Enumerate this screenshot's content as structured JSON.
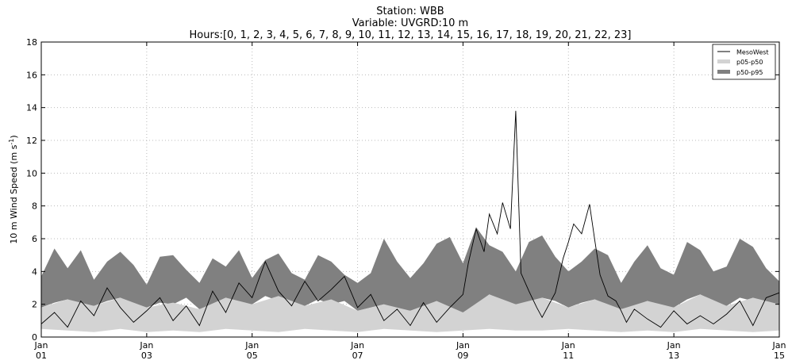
{
  "chart_data": {
    "type": "area",
    "title_lines": [
      "Station: WBB",
      "Variable: UVGRD:10 m",
      "Hours:[0, 1, 2, 3, 4, 5, 6, 7, 8, 9, 10, 11, 12, 13, 14, 15, 16, 17, 18, 19, 20, 21, 22, 23]"
    ],
    "ylabel": "10 m Wind Speed (m s",
    "ylabel_sup": "-1",
    "ylabel_close": ")",
    "xlim_days": [
      1,
      15
    ],
    "ylim": [
      0,
      18
    ],
    "yticks": [
      0,
      2,
      4,
      6,
      8,
      10,
      12,
      14,
      16,
      18
    ],
    "xticks": [
      {
        "day": 1,
        "month": "Jan",
        "label": "01"
      },
      {
        "day": 3,
        "month": "Jan",
        "label": "03"
      },
      {
        "day": 5,
        "month": "Jan",
        "label": "05"
      },
      {
        "day": 7,
        "month": "Jan",
        "label": "07"
      },
      {
        "day": 9,
        "month": "Jan",
        "label": "09"
      },
      {
        "day": 11,
        "month": "Jan",
        "label": "11"
      },
      {
        "day": 13,
        "month": "Jan",
        "label": "13"
      },
      {
        "day": 15,
        "month": "Jan",
        "label": "15"
      }
    ],
    "grid": true,
    "legend_position": "top-right",
    "series": [
      {
        "name": "MesoWest",
        "kind": "line",
        "color": "#000000",
        "day": [
          1.0,
          1.25,
          1.5,
          1.75,
          2.0,
          2.25,
          2.5,
          2.75,
          3.0,
          3.25,
          3.5,
          3.75,
          4.0,
          4.25,
          4.5,
          4.75,
          5.0,
          5.25,
          5.5,
          5.75,
          6.0,
          6.25,
          6.5,
          6.75,
          7.0,
          7.25,
          7.5,
          7.75,
          8.0,
          8.25,
          8.5,
          8.75,
          9.0,
          9.1,
          9.25,
          9.4,
          9.5,
          9.65,
          9.75,
          9.9,
          10.0,
          10.1,
          10.25,
          10.4,
          10.5,
          10.75,
          10.9,
          11.0,
          11.1,
          11.25,
          11.4,
          11.5,
          11.6,
          11.75,
          11.9,
          12.0,
          12.1,
          12.25,
          12.5,
          12.75,
          13.0,
          13.25,
          13.5,
          13.75,
          14.0,
          14.25,
          14.5,
          14.75,
          15.0
        ],
        "values": [
          0.8,
          1.5,
          0.6,
          2.2,
          1.3,
          3.0,
          1.8,
          0.9,
          1.6,
          2.4,
          1.0,
          1.9,
          0.7,
          2.8,
          1.5,
          3.3,
          2.4,
          4.6,
          2.8,
          1.9,
          3.4,
          2.2,
          2.9,
          3.7,
          1.8,
          2.6,
          1.0,
          1.7,
          0.7,
          2.1,
          0.9,
          1.8,
          2.6,
          4.5,
          6.6,
          5.2,
          7.5,
          6.3,
          8.2,
          6.6,
          13.8,
          3.9,
          2.8,
          1.8,
          1.2,
          2.7,
          4.8,
          5.8,
          6.9,
          6.3,
          8.1,
          5.9,
          3.8,
          2.5,
          2.2,
          1.6,
          0.9,
          1.7,
          1.1,
          0.6,
          1.6,
          0.8,
          1.3,
          0.8,
          1.4,
          2.2,
          0.7,
          2.4,
          2.7
        ]
      },
      {
        "name": "p05-p50",
        "kind": "band",
        "color": "#d3d3d3",
        "day": [
          1.0,
          1.5,
          2.0,
          2.5,
          3.0,
          3.5,
          4.0,
          4.5,
          5.0,
          5.5,
          6.0,
          6.5,
          7.0,
          7.5,
          8.0,
          8.5,
          9.0,
          9.5,
          10.0,
          10.5,
          11.0,
          11.5,
          12.0,
          12.5,
          13.0,
          13.5,
          14.0,
          14.5,
          15.0
        ],
        "lower": [
          0.5,
          0.4,
          0.3,
          0.5,
          0.3,
          0.4,
          0.3,
          0.5,
          0.4,
          0.3,
          0.5,
          0.4,
          0.3,
          0.5,
          0.4,
          0.3,
          0.4,
          0.5,
          0.4,
          0.4,
          0.5,
          0.4,
          0.3,
          0.4,
          0.3,
          0.5,
          0.4,
          0.3,
          0.4
        ],
        "upper": [
          1.8,
          2.3,
          1.9,
          2.4,
          1.8,
          2.1,
          1.7,
          2.4,
          2.0,
          2.5,
          1.9,
          2.3,
          1.6,
          2.0,
          1.6,
          2.2,
          1.5,
          2.6,
          2.0,
          2.4,
          1.8,
          2.3,
          1.7,
          2.2,
          1.8,
          2.6,
          1.9,
          2.4,
          2.0
        ]
      },
      {
        "name": "p50-p95",
        "kind": "band",
        "color": "#808080",
        "day": [
          1.0,
          1.25,
          1.5,
          1.75,
          2.0,
          2.25,
          2.5,
          2.75,
          3.0,
          3.25,
          3.5,
          3.75,
          4.0,
          4.25,
          4.5,
          4.75,
          5.0,
          5.25,
          5.5,
          5.75,
          6.0,
          6.25,
          6.5,
          6.75,
          7.0,
          7.25,
          7.5,
          7.75,
          8.0,
          8.25,
          8.5,
          8.75,
          9.0,
          9.25,
          9.5,
          9.75,
          10.0,
          10.25,
          10.5,
          10.75,
          11.0,
          11.25,
          11.5,
          11.75,
          12.0,
          12.25,
          12.5,
          12.75,
          13.0,
          13.25,
          13.5,
          13.75,
          14.0,
          14.25,
          14.5,
          14.75,
          15.0
        ],
        "lower": [
          1.8,
          2.1,
          2.3,
          2.0,
          1.9,
          2.2,
          2.4,
          2.0,
          1.8,
          2.1,
          2.0,
          2.4,
          1.7,
          2.0,
          2.4,
          2.1,
          2.0,
          2.5,
          2.2,
          1.9,
          1.9,
          2.3,
          2.0,
          2.2,
          1.6,
          1.8,
          2.0,
          1.7,
          1.6,
          1.9,
          2.1,
          1.7,
          1.5,
          2.0,
          2.6,
          2.2,
          2.0,
          1.8,
          2.4,
          2.2,
          1.8,
          2.1,
          2.3,
          1.9,
          1.7,
          1.9,
          2.2,
          1.8,
          1.8,
          2.3,
          2.6,
          2.0,
          1.9,
          2.4,
          2.2,
          1.9,
          2.0
        ],
        "upper": [
          3.7,
          5.4,
          4.2,
          5.3,
          3.5,
          4.6,
          5.2,
          4.4,
          3.2,
          4.9,
          5.0,
          4.1,
          3.3,
          4.8,
          4.3,
          5.3,
          3.6,
          4.7,
          5.1,
          3.9,
          3.5,
          5.0,
          4.6,
          3.8,
          3.3,
          3.9,
          6.0,
          4.6,
          3.6,
          4.5,
          5.7,
          6.1,
          4.5,
          6.7,
          5.6,
          5.2,
          4.0,
          5.8,
          6.2,
          4.9,
          4.0,
          4.6,
          5.4,
          5.0,
          3.3,
          4.6,
          5.6,
          4.2,
          3.8,
          5.8,
          5.3,
          4.0,
          4.3,
          6.0,
          5.5,
          4.2,
          3.4
        ]
      }
    ]
  }
}
